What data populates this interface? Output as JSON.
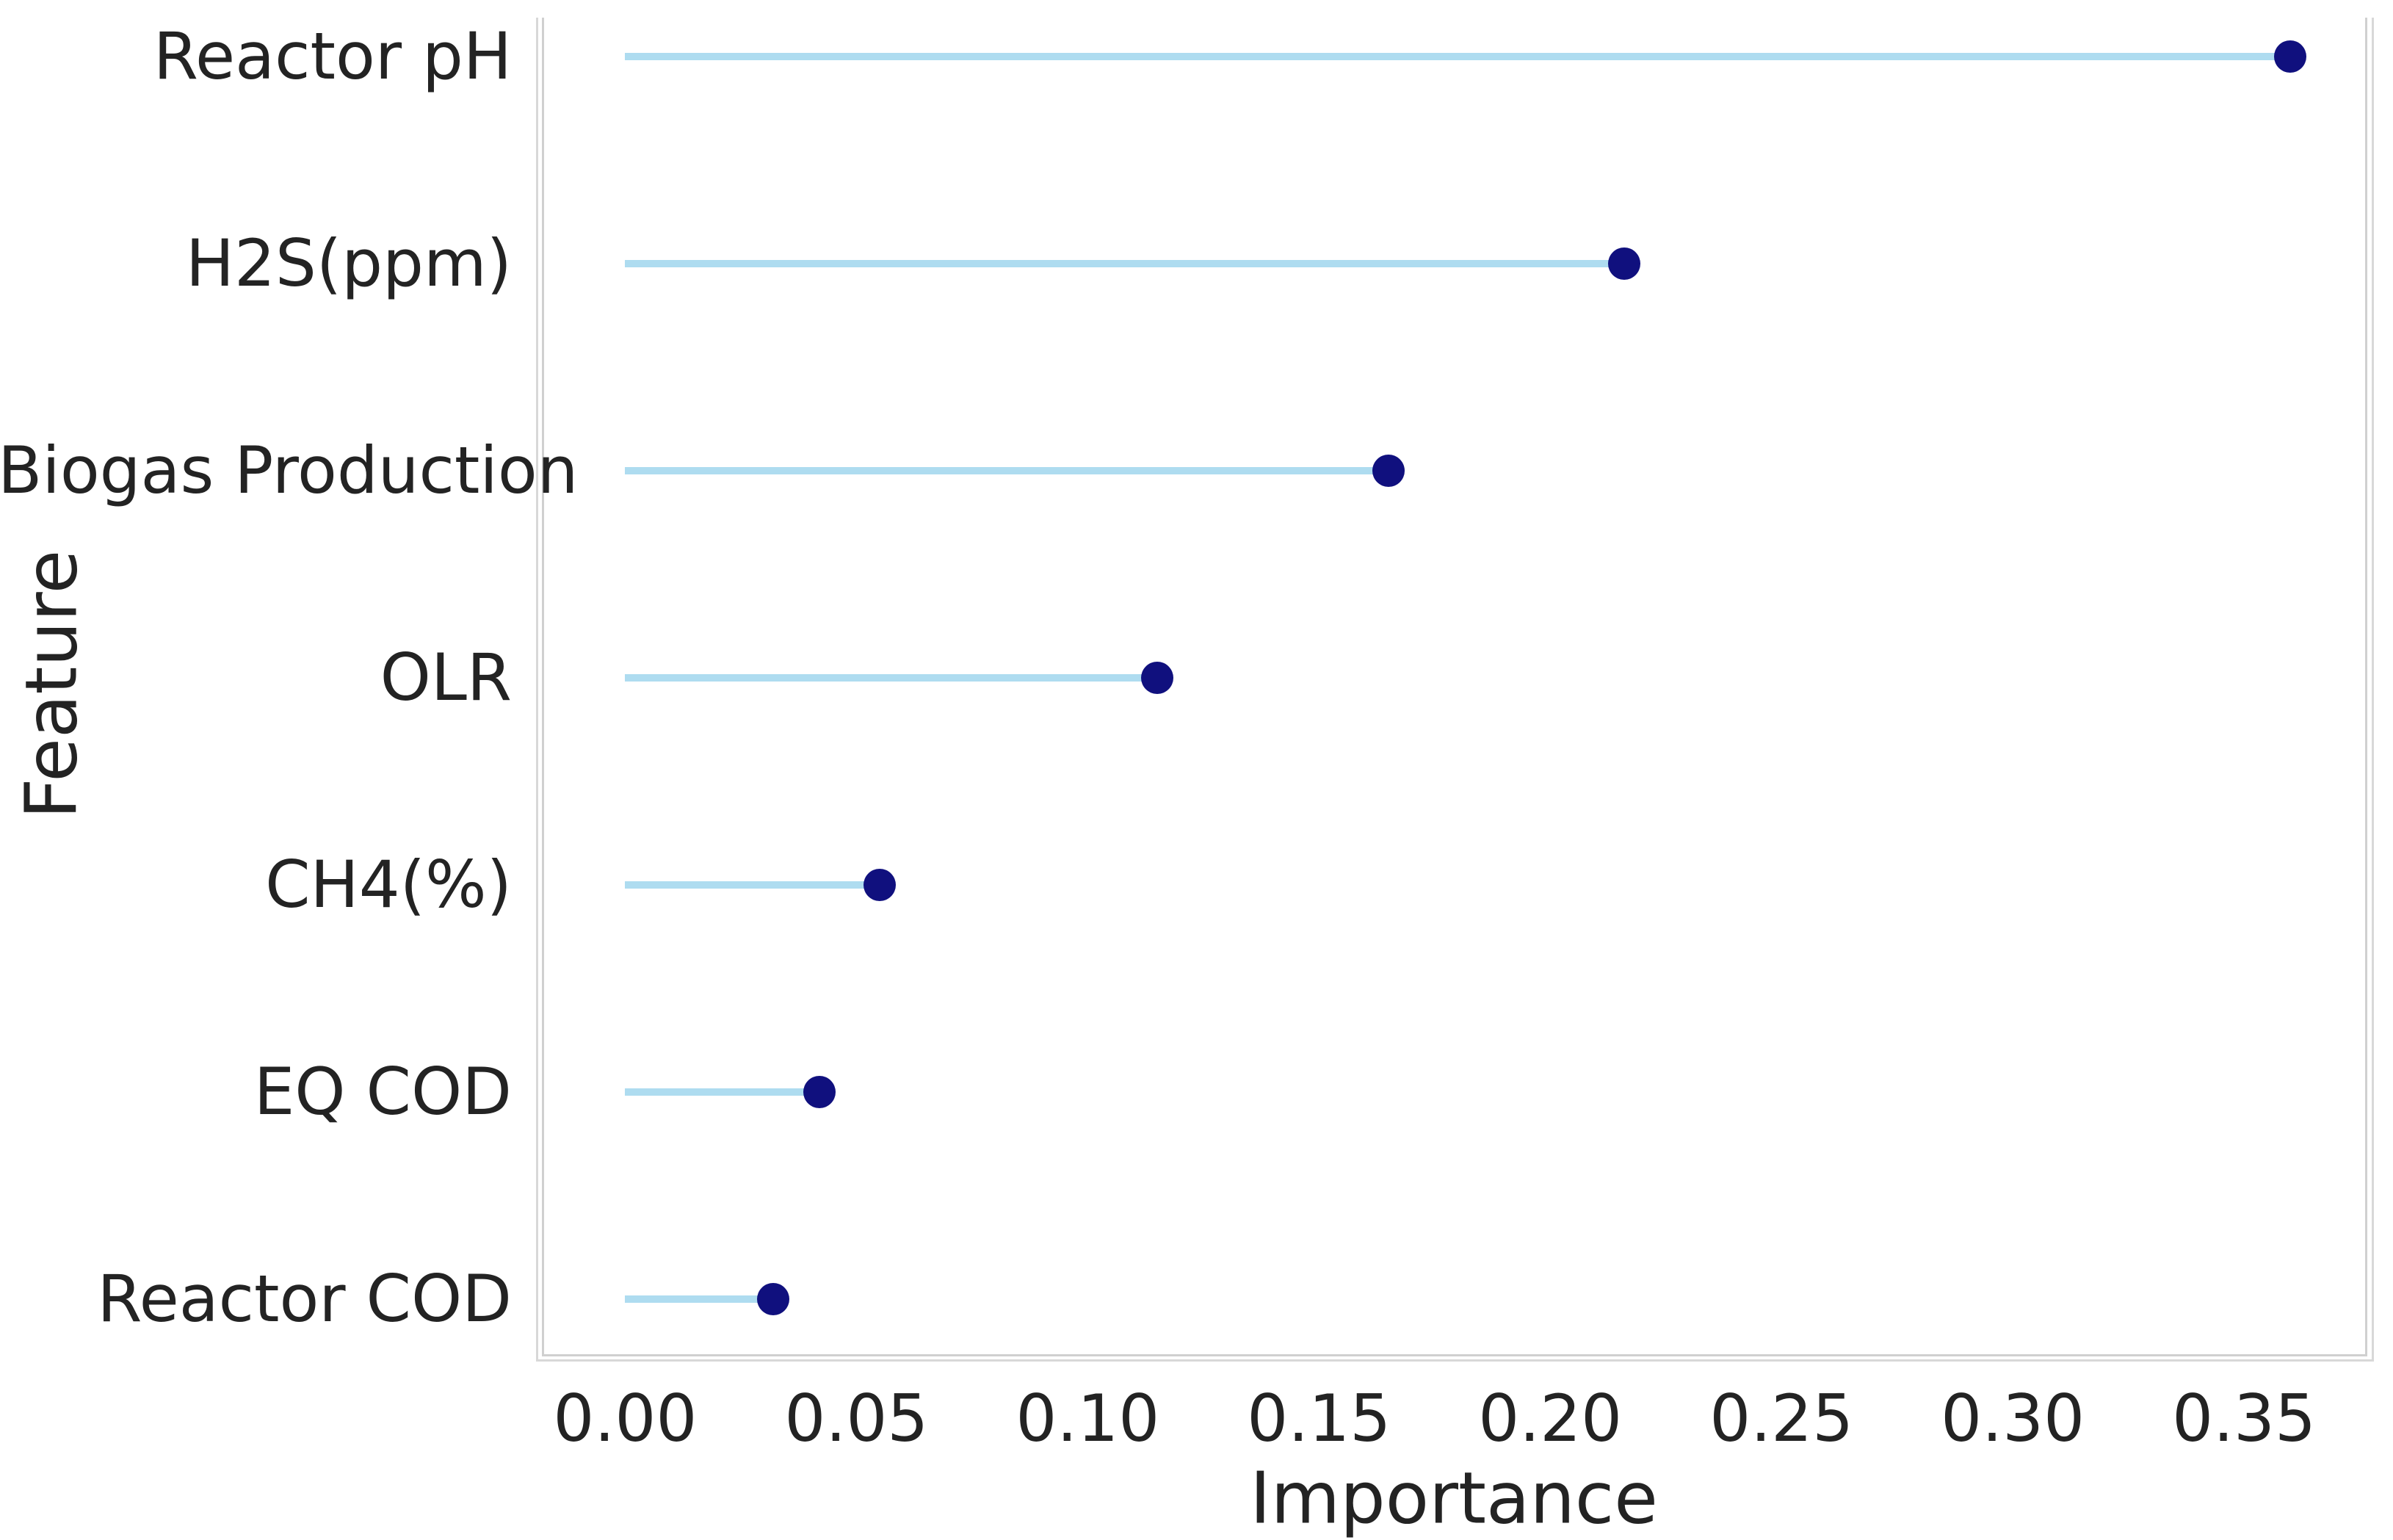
{
  "chart_data": {
    "type": "scatter",
    "subtype": "horizontal-lollipop",
    "title": "",
    "xlabel": "Importance",
    "ylabel": "Feature",
    "categories": [
      "Reactor pH",
      "H2S(ppm)",
      "Biogas Production",
      "OLR",
      "CH4(%)",
      "EQ COD",
      "Reactor COD"
    ],
    "values": [
      0.36,
      0.216,
      0.165,
      0.115,
      0.055,
      0.042,
      0.032
    ],
    "xlim": [
      -0.018,
      0.3765
    ],
    "xticks": [
      0.0,
      0.05,
      0.1,
      0.15,
      0.2,
      0.25,
      0.3,
      0.35
    ],
    "xtick_labels": [
      "0.00",
      "0.05",
      "0.10",
      "0.15",
      "0.20",
      "0.25",
      "0.30",
      "0.35"
    ],
    "grid": false,
    "legend": false,
    "colors": {
      "stem": "#aedcf0",
      "dot": "#10107e",
      "spine": "#d4d4d4",
      "text": "#232323",
      "background": "#ffffff"
    }
  }
}
